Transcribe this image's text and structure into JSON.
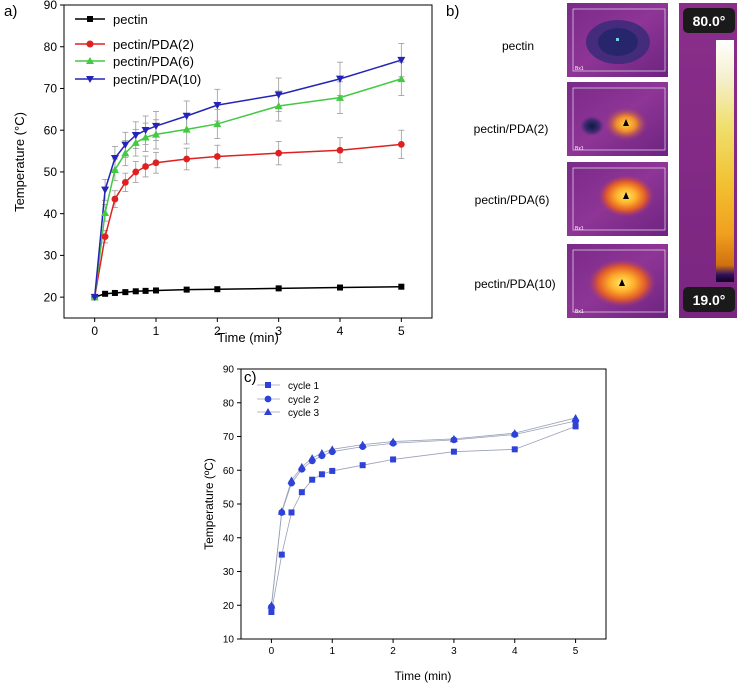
{
  "panel_labels": {
    "a": "a)",
    "b": "b)",
    "c": "c)"
  },
  "colors": {
    "pectin": "#000000",
    "pda2": "#e02020",
    "pda6": "#44c944",
    "pda10": "#2424b8",
    "cycle": "#2e42d8",
    "cycle_line": "#9aa0b8",
    "errorbar": "#9a9a9a"
  },
  "chart_data": [
    {
      "type": "line",
      "title": "",
      "xlabel": "Time (min)",
      "ylabel": "Temperature (°C)",
      "xlim": [
        -0.5,
        5.5
      ],
      "ylim": [
        15,
        90
      ],
      "xticks": [
        0,
        1,
        2,
        3,
        4,
        5
      ],
      "yticks": [
        20,
        30,
        40,
        50,
        60,
        70,
        80,
        90
      ],
      "legend_position": "top-left",
      "series": [
        {
          "name": "pectin",
          "marker": "square",
          "color_key": "pectin",
          "x": [
            0,
            0.17,
            0.33,
            0.5,
            0.67,
            0.83,
            1,
            1.5,
            2,
            3,
            4,
            5
          ],
          "values": [
            20,
            20.8,
            21.0,
            21.2,
            21.4,
            21.5,
            21.6,
            21.8,
            21.9,
            22.1,
            22.3,
            22.5
          ],
          "errors": [
            0,
            0.3,
            0.3,
            0.3,
            0.3,
            0.3,
            0.3,
            0.4,
            0.4,
            0.4,
            0.4,
            0.4
          ]
        },
        {
          "name": "pectin/PDA(2)",
          "marker": "circle",
          "color_key": "pda2",
          "x": [
            0,
            0.17,
            0.33,
            0.5,
            0.67,
            0.83,
            1,
            1.5,
            2,
            3,
            4,
            5
          ],
          "values": [
            20,
            34.5,
            43.5,
            47.5,
            50,
            51.3,
            52.2,
            53.1,
            53.7,
            54.5,
            55.2,
            56.6
          ],
          "errors": [
            0,
            1.5,
            2.0,
            2.2,
            2.5,
            2.5,
            2.5,
            2.6,
            2.7,
            2.8,
            3.0,
            3.4
          ]
        },
        {
          "name": "pectin/PDA(6)",
          "marker": "triangle-up",
          "color_key": "pda6",
          "x": [
            0,
            0.17,
            0.33,
            0.5,
            0.67,
            0.83,
            1,
            1.5,
            2,
            3,
            4,
            5
          ],
          "values": [
            20,
            40.2,
            50.5,
            54.5,
            57,
            58.3,
            59,
            60.2,
            61.5,
            65.8,
            67.8,
            72.3
          ],
          "errors": [
            0,
            2.0,
            2.6,
            3.0,
            3.2,
            3.4,
            3.5,
            3.5,
            3.5,
            3.6,
            3.8,
            4.0
          ]
        },
        {
          "name": "pectin/PDA(10)",
          "marker": "triangle-down",
          "color_key": "pda10",
          "x": [
            0,
            0.17,
            0.33,
            0.5,
            0.67,
            0.83,
            1,
            1.5,
            2,
            3,
            4,
            5
          ],
          "values": [
            20,
            45.7,
            53.3,
            56.5,
            58.8,
            60,
            61,
            63.4,
            66,
            68.5,
            72.3,
            76.8
          ],
          "errors": [
            0,
            2.5,
            2.8,
            3.0,
            3.2,
            3.4,
            3.5,
            3.6,
            3.8,
            4.0,
            4.0,
            4.0
          ]
        }
      ]
    },
    {
      "type": "line",
      "title": "",
      "xlabel": "Time (min)",
      "ylabel": "Temperature (ºC)",
      "xlim": [
        -0.5,
        5.5
      ],
      "ylim": [
        10,
        90
      ],
      "xticks": [
        0,
        1,
        2,
        3,
        4,
        5
      ],
      "yticks": [
        10,
        20,
        30,
        40,
        50,
        60,
        70,
        80,
        90
      ],
      "legend_position": "top-left",
      "series": [
        {
          "name": "cycle 1",
          "marker": "square",
          "color_key": "cycle",
          "x": [
            0,
            0.17,
            0.33,
            0.5,
            0.67,
            0.83,
            1,
            1.5,
            2,
            3,
            4,
            5
          ],
          "values": [
            18,
            35,
            47.5,
            53.5,
            57.2,
            58.8,
            59.8,
            61.5,
            63.2,
            65.5,
            66.2,
            73
          ]
        },
        {
          "name": "cycle 2",
          "marker": "circle",
          "color_key": "cycle",
          "x": [
            0,
            0.17,
            0.33,
            0.5,
            0.67,
            0.83,
            1,
            1.5,
            2,
            3,
            4,
            5
          ],
          "values": [
            19.5,
            47.5,
            56.2,
            60.3,
            62.8,
            64.3,
            65.5,
            67,
            68,
            69,
            70.6,
            74.6
          ]
        },
        {
          "name": "cycle 3",
          "marker": "triangle-up",
          "color_key": "cycle",
          "x": [
            0,
            0.17,
            0.33,
            0.5,
            0.67,
            0.83,
            1,
            1.5,
            2,
            3,
            4,
            5
          ],
          "values": [
            20,
            47.8,
            57,
            61,
            63.6,
            65.1,
            66.2,
            67.6,
            68.5,
            69.3,
            71,
            75.5
          ]
        }
      ]
    }
  ],
  "thermal": {
    "labels": [
      "pectin",
      "pectin/PDA(2)",
      "pectin/PDA(6)",
      "pectin/PDA(10)"
    ],
    "frame_tag": "Bx1",
    "scale_max": "80.0°",
    "scale_min": "19.0°"
  }
}
